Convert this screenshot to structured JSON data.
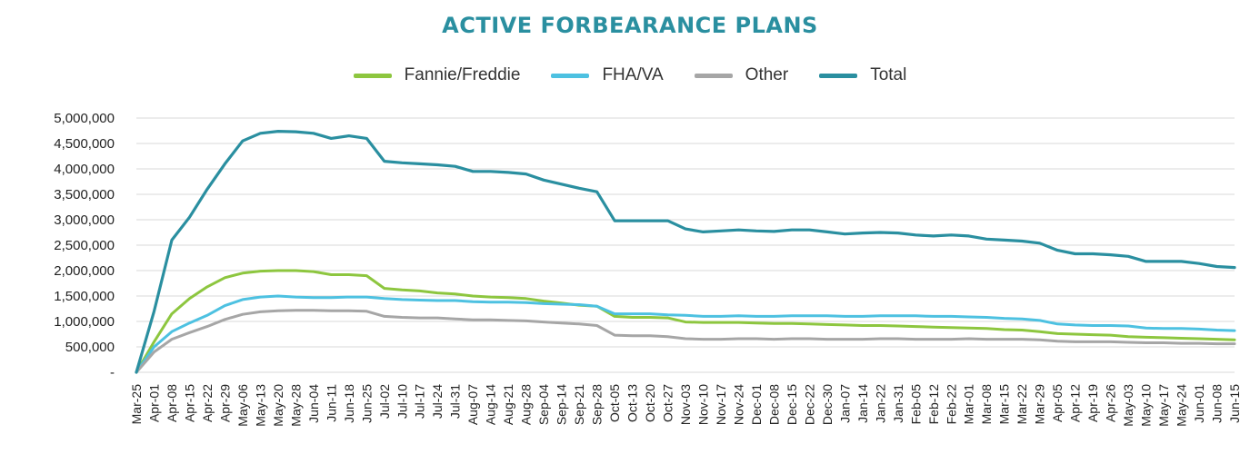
{
  "chart_data": {
    "type": "line",
    "title": "ACTIVE FORBEARANCE PLANS",
    "xlabel": "",
    "ylabel": "",
    "ylim": [
      0,
      5000000
    ],
    "y_ticks": [
      "-",
      "500,000",
      "1,000,000",
      "1,500,000",
      "2,000,000",
      "2,500,000",
      "3,000,000",
      "3,500,000",
      "4,000,000",
      "4,500,000",
      "5,000,000"
    ],
    "y_tick_values": [
      0,
      500000,
      1000000,
      1500000,
      2000000,
      2500000,
      3000000,
      3500000,
      4000000,
      4500000,
      5000000
    ],
    "grid": true,
    "legend_position": "top",
    "categories": [
      "Mar-25",
      "Apr-01",
      "Apr-08",
      "Apr-15",
      "Apr-22",
      "Apr-29",
      "May-06",
      "May-13",
      "May-20",
      "May-28",
      "Jun-04",
      "Jun-11",
      "Jun-18",
      "Jun-25",
      "Jul-02",
      "Jul-10",
      "Jul-17",
      "Jul-24",
      "Jul-31",
      "Aug-07",
      "Aug-14",
      "Aug-21",
      "Aug-28",
      "Sep-04",
      "Sep-14",
      "Sep-21",
      "Sep-28",
      "Oct-05",
      "Oct-13",
      "Oct-20",
      "Oct-27",
      "Nov-03",
      "Nov-10",
      "Nov-17",
      "Nov-24",
      "Dec-01",
      "Dec-08",
      "Dec-15",
      "Dec-22",
      "Dec-30",
      "Jan-07",
      "Jan-14",
      "Jan-22",
      "Jan-31",
      "Feb-05",
      "Feb-12",
      "Feb-22",
      "Mar-01",
      "Mar-08",
      "Mar-15",
      "Mar-22",
      "Mar-29",
      "Apr-05",
      "Apr-12",
      "Apr-19",
      "Apr-26",
      "May-03",
      "May-10",
      "May-17",
      "May-24",
      "Jun-01",
      "Jun-08",
      "Jun-15"
    ],
    "series": [
      {
        "name": "Fannie/Freddie",
        "color": "#8dc63f",
        "values": [
          0,
          600000,
          1150000,
          1450000,
          1680000,
          1860000,
          1950000,
          1990000,
          2000000,
          2000000,
          1980000,
          1920000,
          1920000,
          1900000,
          1650000,
          1620000,
          1600000,
          1560000,
          1540000,
          1500000,
          1480000,
          1470000,
          1450000,
          1400000,
          1360000,
          1320000,
          1300000,
          1100000,
          1080000,
          1080000,
          1070000,
          990000,
          980000,
          980000,
          980000,
          970000,
          960000,
          960000,
          950000,
          940000,
          930000,
          920000,
          920000,
          910000,
          900000,
          890000,
          880000,
          870000,
          860000,
          840000,
          830000,
          800000,
          760000,
          750000,
          740000,
          730000,
          700000,
          690000,
          680000,
          670000,
          660000,
          650000,
          640000
        ]
      },
      {
        "name": "FHA/VA",
        "color": "#4dc1e1",
        "values": [
          0,
          500000,
          800000,
          970000,
          1120000,
          1310000,
          1430000,
          1480000,
          1500000,
          1480000,
          1470000,
          1470000,
          1480000,
          1480000,
          1450000,
          1430000,
          1420000,
          1410000,
          1410000,
          1390000,
          1380000,
          1380000,
          1370000,
          1350000,
          1340000,
          1330000,
          1300000,
          1150000,
          1150000,
          1150000,
          1130000,
          1120000,
          1100000,
          1100000,
          1110000,
          1100000,
          1100000,
          1110000,
          1110000,
          1110000,
          1100000,
          1100000,
          1110000,
          1110000,
          1110000,
          1100000,
          1100000,
          1090000,
          1080000,
          1060000,
          1050000,
          1020000,
          950000,
          930000,
          920000,
          920000,
          910000,
          870000,
          860000,
          860000,
          850000,
          830000,
          820000
        ]
      },
      {
        "name": "Other",
        "color": "#a6a6a6",
        "values": [
          0,
          400000,
          650000,
          780000,
          900000,
          1040000,
          1140000,
          1190000,
          1210000,
          1220000,
          1220000,
          1210000,
          1210000,
          1200000,
          1100000,
          1080000,
          1070000,
          1070000,
          1050000,
          1030000,
          1030000,
          1020000,
          1010000,
          990000,
          970000,
          950000,
          920000,
          730000,
          720000,
          720000,
          700000,
          660000,
          650000,
          650000,
          660000,
          660000,
          650000,
          660000,
          660000,
          650000,
          650000,
          650000,
          660000,
          660000,
          650000,
          650000,
          650000,
          660000,
          650000,
          650000,
          650000,
          640000,
          610000,
          600000,
          600000,
          600000,
          590000,
          580000,
          580000,
          570000,
          570000,
          560000,
          560000
        ]
      },
      {
        "name": "Total",
        "color": "#2a8fa0",
        "values": [
          0,
          1200000,
          2600000,
          3050000,
          3600000,
          4100000,
          4550000,
          4700000,
          4740000,
          4730000,
          4700000,
          4600000,
          4650000,
          4600000,
          4150000,
          4120000,
          4100000,
          4080000,
          4050000,
          3950000,
          3950000,
          3930000,
          3900000,
          3780000,
          3700000,
          3620000,
          3550000,
          2980000,
          2980000,
          2980000,
          2980000,
          2820000,
          2760000,
          2780000,
          2800000,
          2780000,
          2770000,
          2800000,
          2800000,
          2760000,
          2720000,
          2740000,
          2750000,
          2740000,
          2700000,
          2680000,
          2700000,
          2680000,
          2620000,
          2600000,
          2580000,
          2540000,
          2400000,
          2330000,
          2330000,
          2310000,
          2280000,
          2180000,
          2180000,
          2180000,
          2140000,
          2080000,
          2060000
        ]
      }
    ]
  }
}
